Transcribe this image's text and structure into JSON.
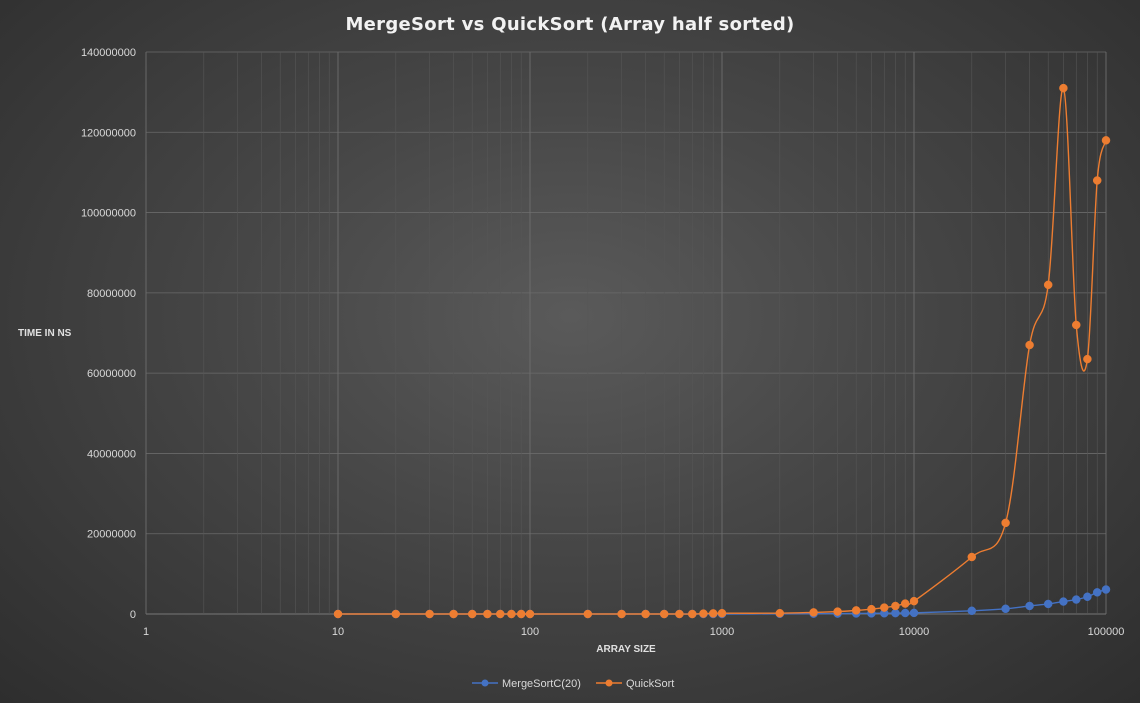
{
  "chart_data": {
    "type": "line",
    "title": "MergeSort  vs QuickSort  (Array half sorted)",
    "xlabel": "ARRAY SIZE",
    "ylabel": "TIME IN NS",
    "x_scale": "log",
    "xlim": [
      1,
      100000
    ],
    "ylim": [
      0,
      140000000
    ],
    "x_ticks": [
      "1",
      "10",
      "100",
      "1000",
      "10000",
      "100000"
    ],
    "y_ticks": [
      "0",
      "20000000",
      "40000000",
      "60000000",
      "80000000",
      "100000000",
      "120000000",
      "140000000"
    ],
    "grid": true,
    "legend_position": "bottom",
    "series": [
      {
        "name": "MergeSortC(20)",
        "color": "#4472c4",
        "points": [
          [
            10,
            0
          ],
          [
            20,
            0
          ],
          [
            30,
            0
          ],
          [
            40,
            0
          ],
          [
            50,
            0
          ],
          [
            60,
            0
          ],
          [
            70,
            0
          ],
          [
            80,
            0
          ],
          [
            90,
            0
          ],
          [
            100,
            0
          ],
          [
            200,
            0
          ],
          [
            300,
            0
          ],
          [
            400,
            0
          ],
          [
            500,
            0
          ],
          [
            600,
            0
          ],
          [
            700,
            0
          ],
          [
            800,
            0
          ],
          [
            900,
            0
          ],
          [
            1000,
            0
          ],
          [
            2000,
            50000
          ],
          [
            3000,
            80000
          ],
          [
            4000,
            100000
          ],
          [
            5000,
            130000
          ],
          [
            6000,
            160000
          ],
          [
            7000,
            190000
          ],
          [
            8000,
            220000
          ],
          [
            9000,
            250000
          ],
          [
            10000,
            280000
          ],
          [
            20000,
            800000
          ],
          [
            30000,
            1300000
          ],
          [
            40000,
            2000000
          ],
          [
            50000,
            2500000
          ],
          [
            60000,
            3100000
          ],
          [
            70000,
            3600000
          ],
          [
            80000,
            4300000
          ],
          [
            90000,
            5400000
          ],
          [
            100000,
            6100000
          ]
        ]
      },
      {
        "name": "QuickSort",
        "color": "#ed7d31",
        "points": [
          [
            10,
            0
          ],
          [
            20,
            0
          ],
          [
            30,
            0
          ],
          [
            40,
            0
          ],
          [
            50,
            0
          ],
          [
            60,
            0
          ],
          [
            70,
            0
          ],
          [
            80,
            0
          ],
          [
            90,
            0
          ],
          [
            100,
            0
          ],
          [
            200,
            0
          ],
          [
            300,
            0
          ],
          [
            400,
            0
          ],
          [
            500,
            0
          ],
          [
            600,
            0
          ],
          [
            700,
            0
          ],
          [
            800,
            100000
          ],
          [
            900,
            150000
          ],
          [
            1000,
            200000
          ],
          [
            2000,
            200000
          ],
          [
            3000,
            400000
          ],
          [
            4000,
            600000
          ],
          [
            5000,
            900000
          ],
          [
            6000,
            1200000
          ],
          [
            7000,
            1600000
          ],
          [
            8000,
            2000000
          ],
          [
            9000,
            2600000
          ],
          [
            10000,
            3200000
          ],
          [
            20000,
            14200000
          ],
          [
            30000,
            22700000
          ],
          [
            40000,
            67000000
          ],
          [
            50000,
            82000000
          ],
          [
            60000,
            131000000
          ],
          [
            70000,
            72000000
          ],
          [
            80000,
            63500000
          ],
          [
            90000,
            108000000
          ],
          [
            100000,
            118000000
          ]
        ]
      }
    ]
  }
}
